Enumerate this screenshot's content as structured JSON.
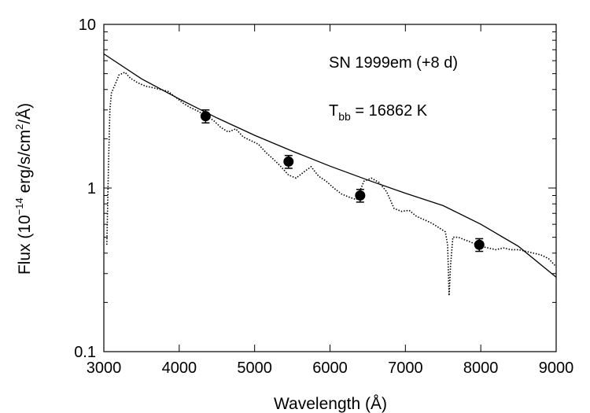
{
  "chart_data": {
    "type": "scatter",
    "xlim": [
      3000,
      9000
    ],
    "ylim": [
      0.1,
      10
    ],
    "yscale": "log",
    "x_ticks": [
      3000,
      4000,
      5000,
      6000,
      7000,
      8000,
      9000
    ],
    "x_tick_labels": [
      "3000",
      "4000",
      "5000",
      "6000",
      "7000",
      "8000",
      "9000"
    ],
    "y_ticks": [
      0.1,
      1,
      10
    ],
    "y_tick_labels": [
      "0.1",
      "1",
      "10"
    ],
    "xlabel": "Wavelength (Å)",
    "ylabel": {
      "prefix": "Flux (10",
      "exp": "−14",
      "mid": " erg/s/cm",
      "exp2": "2",
      "suffix": "/Å)"
    },
    "annotations": {
      "line1": "SN 1999em (+8 d)",
      "tbb_prefix": "T",
      "tbb_sub": "bb",
      "tbb_value": " = 16862 K"
    },
    "grid": false,
    "legend": "none",
    "series": [
      {
        "style": "solid-line",
        "x": [
          3000,
          3500,
          4000,
          4500,
          5000,
          5500,
          6000,
          6500,
          7000,
          7500,
          8000,
          8500,
          9000
        ],
        "y": [
          6.6,
          4.65,
          3.5,
          2.68,
          2.1,
          1.68,
          1.36,
          1.12,
          0.93,
          0.78,
          0.6,
          0.44,
          0.285
        ]
      },
      {
        "style": "dotted-line",
        "x": [
          3040,
          3060,
          3080,
          3100,
          3130,
          3160,
          3200,
          3280,
          3350,
          3450,
          3550,
          3650,
          3750,
          3850,
          3950,
          4050,
          4150,
          4250,
          4350,
          4450,
          4550,
          4650,
          4750,
          4850,
          4950,
          5050,
          5150,
          5250,
          5350,
          5450,
          5550,
          5650,
          5750,
          5850,
          5950,
          6050,
          6150,
          6250,
          6350,
          6450,
          6550,
          6650,
          6750,
          6850,
          6950,
          7050,
          7150,
          7250,
          7350,
          7450,
          7530,
          7560,
          7580,
          7600,
          7630,
          7700,
          7800,
          7900,
          8000,
          8100,
          8200,
          8300,
          8400,
          8500,
          8600,
          8700,
          8800,
          8900,
          9000
        ],
        "y": [
          0.45,
          1.3,
          3.0,
          3.8,
          4.1,
          4.4,
          4.9,
          5.1,
          4.7,
          4.4,
          4.2,
          4.1,
          4.0,
          3.9,
          3.6,
          3.3,
          3.1,
          2.95,
          2.75,
          2.6,
          2.35,
          2.2,
          2.3,
          2.05,
          1.95,
          1.85,
          1.65,
          1.5,
          1.35,
          1.2,
          1.15,
          1.25,
          1.35,
          1.18,
          1.1,
          1.0,
          0.92,
          0.88,
          0.85,
          1.1,
          1.15,
          1.08,
          0.95,
          0.75,
          0.72,
          0.73,
          0.67,
          0.64,
          0.61,
          0.57,
          0.54,
          0.45,
          0.22,
          0.34,
          0.5,
          0.5,
          0.48,
          0.46,
          0.44,
          0.43,
          0.42,
          0.43,
          0.42,
          0.42,
          0.41,
          0.4,
          0.39,
          0.37,
          0.33
        ]
      },
      {
        "style": "points-with-errorbars",
        "x": [
          4350,
          5450,
          6400,
          7980
        ],
        "y": [
          2.75,
          1.45,
          0.9,
          0.45
        ],
        "err": [
          0.25,
          0.13,
          0.08,
          0.04
        ]
      }
    ]
  }
}
